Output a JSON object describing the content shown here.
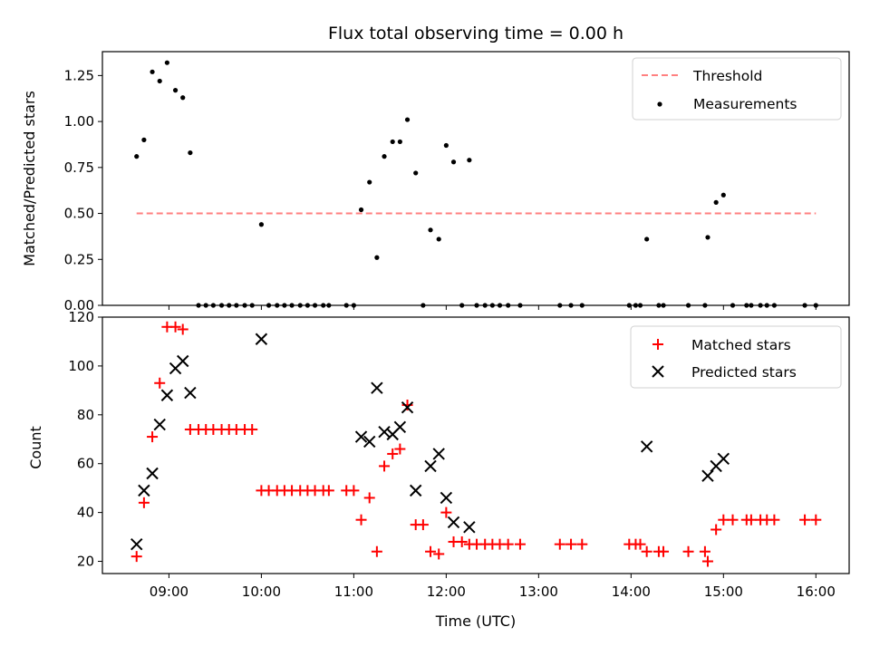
{
  "chart_data": [
    {
      "type": "scatter",
      "title": "Flux total observing time = 0.00 h",
      "xlabel": "",
      "ylabel": "Matched/Predicted stars",
      "xlim": [
        8.28,
        16.36
      ],
      "ylim": [
        0.0,
        1.38
      ],
      "yticks": [
        "0.00",
        "0.25",
        "0.50",
        "0.75",
        "1.00",
        "1.25"
      ],
      "legend_position": "top-right",
      "threshold": {
        "name": "Threshold",
        "color": "#ff8080",
        "x": [
          8.65,
          16.0
        ],
        "y": [
          0.5,
          0.5
        ]
      },
      "series": [
        {
          "name": "Measurements",
          "color": "#000000",
          "points": [
            [
              8.65,
              0.81
            ],
            [
              8.73,
              0.9
            ],
            [
              8.82,
              1.27
            ],
            [
              8.9,
              1.22
            ],
            [
              8.98,
              1.32
            ],
            [
              9.07,
              1.17
            ],
            [
              9.15,
              1.13
            ],
            [
              9.23,
              0.83
            ],
            [
              9.32,
              0.0
            ],
            [
              9.4,
              0.0
            ],
            [
              9.48,
              0.0
            ],
            [
              9.57,
              0.0
            ],
            [
              9.65,
              0.0
            ],
            [
              9.73,
              0.0
            ],
            [
              9.82,
              0.0
            ],
            [
              9.9,
              0.0
            ],
            [
              10.0,
              0.44
            ],
            [
              10.08,
              0.0
            ],
            [
              10.17,
              0.0
            ],
            [
              10.25,
              0.0
            ],
            [
              10.33,
              0.0
            ],
            [
              10.42,
              0.0
            ],
            [
              10.5,
              0.0
            ],
            [
              10.58,
              0.0
            ],
            [
              10.67,
              0.0
            ],
            [
              10.73,
              0.0
            ],
            [
              10.92,
              0.0
            ],
            [
              11.0,
              0.0
            ],
            [
              11.08,
              0.52
            ],
            [
              11.17,
              0.67
            ],
            [
              11.25,
              0.26
            ],
            [
              11.33,
              0.81
            ],
            [
              11.42,
              0.89
            ],
            [
              11.5,
              0.89
            ],
            [
              11.58,
              1.01
            ],
            [
              11.67,
              0.72
            ],
            [
              11.75,
              0.0
            ],
            [
              11.83,
              0.41
            ],
            [
              11.92,
              0.36
            ],
            [
              12.0,
              0.87
            ],
            [
              12.08,
              0.78
            ],
            [
              12.17,
              0.0
            ],
            [
              12.25,
              0.79
            ],
            [
              12.33,
              0.0
            ],
            [
              12.42,
              0.0
            ],
            [
              12.5,
              0.0
            ],
            [
              12.58,
              0.0
            ],
            [
              12.67,
              0.0
            ],
            [
              12.8,
              0.0
            ],
            [
              13.23,
              0.0
            ],
            [
              13.35,
              0.0
            ],
            [
              13.47,
              0.0
            ],
            [
              13.98,
              0.0
            ],
            [
              14.05,
              0.0
            ],
            [
              14.1,
              0.0
            ],
            [
              14.17,
              0.36
            ],
            [
              14.3,
              0.0
            ],
            [
              14.35,
              0.0
            ],
            [
              14.62,
              0.0
            ],
            [
              14.8,
              0.0
            ],
            [
              14.83,
              0.37
            ],
            [
              14.92,
              0.56
            ],
            [
              15.0,
              0.6
            ],
            [
              15.1,
              0.0
            ],
            [
              15.25,
              0.0
            ],
            [
              15.3,
              0.0
            ],
            [
              15.4,
              0.0
            ],
            [
              15.47,
              0.0
            ],
            [
              15.55,
              0.0
            ],
            [
              15.88,
              0.0
            ],
            [
              16.0,
              0.0
            ]
          ]
        }
      ]
    },
    {
      "type": "scatter",
      "title": "",
      "xlabel": "Time (UTC)",
      "ylabel": "Count",
      "xlim": [
        8.28,
        16.36
      ],
      "ylim": [
        15.0,
        120.0
      ],
      "yticks": [
        "20",
        "40",
        "60",
        "80",
        "100",
        "120"
      ],
      "xticks": [
        "09:00",
        "10:00",
        "11:00",
        "12:00",
        "13:00",
        "14:00",
        "15:00",
        "16:00"
      ],
      "legend_position": "top-right",
      "series": [
        {
          "name": "Matched stars",
          "color": "#ff0000",
          "marker": "plus",
          "points": [
            [
              8.65,
              22
            ],
            [
              8.73,
              44
            ],
            [
              8.82,
              71
            ],
            [
              8.9,
              93
            ],
            [
              8.98,
              116
            ],
            [
              9.07,
              116
            ],
            [
              9.15,
              115
            ],
            [
              9.23,
              74
            ],
            [
              9.32,
              74
            ],
            [
              9.4,
              74
            ],
            [
              9.48,
              74
            ],
            [
              9.57,
              74
            ],
            [
              9.65,
              74
            ],
            [
              9.73,
              74
            ],
            [
              9.82,
              74
            ],
            [
              9.9,
              74
            ],
            [
              10.0,
              49
            ],
            [
              10.08,
              49
            ],
            [
              10.17,
              49
            ],
            [
              10.25,
              49
            ],
            [
              10.33,
              49
            ],
            [
              10.42,
              49
            ],
            [
              10.5,
              49
            ],
            [
              10.58,
              49
            ],
            [
              10.67,
              49
            ],
            [
              10.73,
              49
            ],
            [
              10.92,
              49
            ],
            [
              11.0,
              49
            ],
            [
              11.08,
              37
            ],
            [
              11.17,
              46
            ],
            [
              11.25,
              24
            ],
            [
              11.33,
              59
            ],
            [
              11.42,
              64
            ],
            [
              11.5,
              66
            ],
            [
              11.58,
              84
            ],
            [
              11.67,
              35
            ],
            [
              11.75,
              35
            ],
            [
              11.83,
              24
            ],
            [
              11.92,
              23
            ],
            [
              12.0,
              40
            ],
            [
              12.08,
              28
            ],
            [
              12.17,
              28
            ],
            [
              12.25,
              27
            ],
            [
              12.33,
              27
            ],
            [
              12.42,
              27
            ],
            [
              12.5,
              27
            ],
            [
              12.58,
              27
            ],
            [
              12.67,
              27
            ],
            [
              12.8,
              27
            ],
            [
              13.23,
              27
            ],
            [
              13.35,
              27
            ],
            [
              13.47,
              27
            ],
            [
              13.98,
              27
            ],
            [
              14.05,
              27
            ],
            [
              14.1,
              27
            ],
            [
              14.17,
              24
            ],
            [
              14.3,
              24
            ],
            [
              14.35,
              24
            ],
            [
              14.62,
              24
            ],
            [
              14.8,
              24
            ],
            [
              14.83,
              20
            ],
            [
              14.92,
              33
            ],
            [
              15.0,
              37
            ],
            [
              15.1,
              37
            ],
            [
              15.25,
              37
            ],
            [
              15.3,
              37
            ],
            [
              15.4,
              37
            ],
            [
              15.47,
              37
            ],
            [
              15.55,
              37
            ],
            [
              15.88,
              37
            ],
            [
              16.0,
              37
            ]
          ]
        },
        {
          "name": "Predicted stars",
          "color": "#000000",
          "marker": "x",
          "points": [
            [
              8.65,
              27
            ],
            [
              8.73,
              49
            ],
            [
              8.82,
              56
            ],
            [
              8.9,
              76
            ],
            [
              8.98,
              88
            ],
            [
              9.07,
              99
            ],
            [
              9.15,
              102
            ],
            [
              9.23,
              89
            ],
            [
              10.0,
              111
            ],
            [
              11.08,
              71
            ],
            [
              11.17,
              69
            ],
            [
              11.25,
              91
            ],
            [
              11.33,
              73
            ],
            [
              11.42,
              72
            ],
            [
              11.5,
              75
            ],
            [
              11.58,
              83
            ],
            [
              11.67,
              49
            ],
            [
              11.83,
              59
            ],
            [
              11.92,
              64
            ],
            [
              12.0,
              46
            ],
            [
              12.08,
              36
            ],
            [
              12.25,
              34
            ],
            [
              14.17,
              67
            ],
            [
              14.83,
              55
            ],
            [
              14.92,
              59
            ],
            [
              15.0,
              62
            ]
          ]
        }
      ]
    }
  ]
}
